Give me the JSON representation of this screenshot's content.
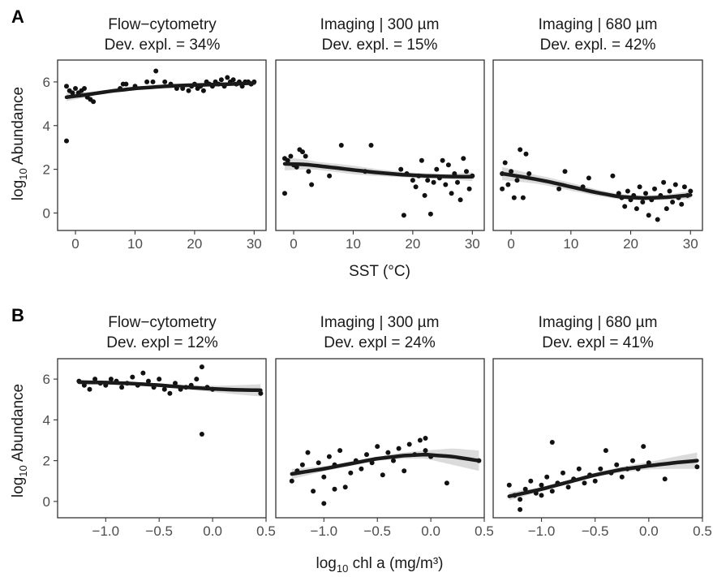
{
  "rows": [
    {
      "tag": "A",
      "xlabel_main": "SST (°C)",
      "xlabel_sub": "",
      "xlabel_tail": "",
      "ylabel_main": "log",
      "ylabel_sub": "10",
      "ylabel_tail": " Abundance",
      "xlim": [
        -3,
        32
      ],
      "ylim": [
        -0.8,
        7.0
      ],
      "xticks": [
        0,
        10,
        20,
        30
      ],
      "xtick_labels": [
        "0",
        "10",
        "20",
        "30"
      ],
      "yticks": [
        0,
        2,
        4,
        6
      ],
      "ytick_labels": [
        "0",
        "2",
        "4",
        "6"
      ]
    },
    {
      "tag": "B",
      "xlabel_main": "log",
      "xlabel_sub": "10",
      "xlabel_tail": " chl a (mg/m³)",
      "ylabel_main": "log",
      "ylabel_sub": "10",
      "ylabel_tail": " Abundance",
      "xlim": [
        -1.45,
        0.5
      ],
      "ylim": [
        -0.8,
        7.0
      ],
      "xticks": [
        -1.0,
        -0.5,
        0.0,
        0.5
      ],
      "xtick_labels": [
        "−1.0",
        "−0.5",
        "0.0",
        "0.5"
      ],
      "yticks": [
        0,
        2,
        4,
        6
      ],
      "ytick_labels": [
        "0",
        "2",
        "4",
        "6"
      ]
    }
  ],
  "chart_data": [
    {
      "type": "scatter",
      "panel": "A1",
      "title": [
        "Flow−cytometry",
        "Dev. expl. = 34%"
      ],
      "xlabel": "SST (°C)",
      "ylabel": "log10 Abundance",
      "xlim": [
        -3,
        32
      ],
      "ylim": [
        -0.8,
        7.0
      ],
      "points": [
        [
          -1.5,
          5.8
        ],
        [
          -1,
          5.6
        ],
        [
          -0.5,
          5.5
        ],
        [
          0,
          5.7
        ],
        [
          0.5,
          5.5
        ],
        [
          1,
          5.6
        ],
        [
          1.5,
          5.7
        ],
        [
          2,
          5.3
        ],
        [
          2.5,
          5.2
        ],
        [
          3,
          5.1
        ],
        [
          -1.5,
          3.3
        ],
        [
          7.5,
          5.7
        ],
        [
          8,
          5.9
        ],
        [
          8.5,
          5.9
        ],
        [
          10,
          5.8
        ],
        [
          12,
          6.0
        ],
        [
          13,
          6.0
        ],
        [
          13.5,
          6.5
        ],
        [
          15,
          6.0
        ],
        [
          16,
          5.9
        ],
        [
          17,
          5.7
        ],
        [
          18,
          5.7
        ],
        [
          19,
          5.6
        ],
        [
          19.5,
          5.8
        ],
        [
          20,
          5.9
        ],
        [
          20.5,
          5.7
        ],
        [
          21,
          5.8
        ],
        [
          21.5,
          5.6
        ],
        [
          22,
          6.0
        ],
        [
          22.5,
          5.9
        ],
        [
          23,
          5.8
        ],
        [
          23.5,
          6.0
        ],
        [
          24,
          5.9
        ],
        [
          24.5,
          6.1
        ],
        [
          25,
          5.8
        ],
        [
          25.5,
          6.2
        ],
        [
          26,
          6.0
        ],
        [
          26.5,
          6.1
        ],
        [
          27,
          5.9
        ],
        [
          27.5,
          6.0
        ],
        [
          28,
          5.8
        ],
        [
          28.5,
          6.0
        ],
        [
          29,
          6.0
        ],
        [
          29.5,
          5.9
        ],
        [
          30,
          6.0
        ]
      ],
      "fit": [
        [
          -1.5,
          5.3
        ],
        [
          2,
          5.42
        ],
        [
          6,
          5.58
        ],
        [
          10,
          5.7
        ],
        [
          14,
          5.78
        ],
        [
          18,
          5.84
        ],
        [
          22,
          5.87
        ],
        [
          26,
          5.9
        ],
        [
          30,
          5.95
        ]
      ],
      "band": [
        [
          -1.5,
          0.18
        ],
        [
          4,
          0.08
        ],
        [
          10,
          0.06
        ],
        [
          18,
          0.05
        ],
        [
          26,
          0.06
        ],
        [
          30,
          0.1
        ]
      ],
      "grid": false
    },
    {
      "type": "scatter",
      "panel": "A2",
      "title": [
        "Imaging | 300 µm",
        "Dev. expl. = 15%"
      ],
      "xlabel": "SST (°C)",
      "ylabel": "log10 Abundance",
      "xlim": [
        -3,
        32
      ],
      "ylim": [
        -0.8,
        7.0
      ],
      "points": [
        [
          -1.5,
          2.5
        ],
        [
          -1,
          2.4
        ],
        [
          -0.5,
          2.6
        ],
        [
          0,
          2.2
        ],
        [
          0.5,
          2.1
        ],
        [
          1,
          2.9
        ],
        [
          1.5,
          2.8
        ],
        [
          2,
          2.6
        ],
        [
          2.5,
          1.9
        ],
        [
          3,
          1.3
        ],
        [
          -1.5,
          0.9
        ],
        [
          8,
          3.1
        ],
        [
          12,
          1.9
        ],
        [
          13,
          3.1
        ],
        [
          6,
          1.7
        ],
        [
          18,
          2.0
        ],
        [
          18.5,
          -0.1
        ],
        [
          19,
          1.8
        ],
        [
          20,
          1.5
        ],
        [
          20.5,
          1.2
        ],
        [
          21,
          1.7
        ],
        [
          21.5,
          2.4
        ],
        [
          22,
          0.8
        ],
        [
          22.5,
          1.5
        ],
        [
          23,
          -0.05
        ],
        [
          23.5,
          1.4
        ],
        [
          24,
          2.0
        ],
        [
          24.5,
          1.6
        ],
        [
          25,
          2.4
        ],
        [
          25.5,
          1.3
        ],
        [
          26,
          2.2
        ],
        [
          26.5,
          0.9
        ],
        [
          27,
          1.8
        ],
        [
          27.5,
          1.4
        ],
        [
          28,
          0.6
        ],
        [
          28.5,
          2.5
        ],
        [
          29,
          1.9
        ],
        [
          29.5,
          1.1
        ],
        [
          30,
          1.7
        ]
      ],
      "fit": [
        [
          -1.5,
          2.25
        ],
        [
          2,
          2.22
        ],
        [
          6,
          2.1
        ],
        [
          10,
          1.97
        ],
        [
          14,
          1.85
        ],
        [
          18,
          1.76
        ],
        [
          22,
          1.7
        ],
        [
          26,
          1.67
        ],
        [
          30,
          1.66
        ]
      ],
      "band": [
        [
          -1.5,
          0.3
        ],
        [
          4,
          0.18
        ],
        [
          10,
          0.2
        ],
        [
          18,
          0.12
        ],
        [
          26,
          0.12
        ],
        [
          30,
          0.2
        ]
      ],
      "grid": false
    },
    {
      "type": "scatter",
      "panel": "A3",
      "title": [
        "Imaging | 680 µm",
        "Dev. expl. = 42%"
      ],
      "xlabel": "SST (°C)",
      "ylabel": "log10 Abundance",
      "xlim": [
        -3,
        32
      ],
      "ylim": [
        -0.8,
        7.0
      ],
      "points": [
        [
          -1.5,
          1.8
        ],
        [
          -1,
          2.3
        ],
        [
          -0.5,
          1.3
        ],
        [
          0,
          1.9
        ],
        [
          0.5,
          0.7
        ],
        [
          1,
          1.5
        ],
        [
          1.5,
          2.9
        ],
        [
          2,
          0.7
        ],
        [
          2.5,
          2.7
        ],
        [
          3,
          1.8
        ],
        [
          -1.5,
          1.1
        ],
        [
          8,
          1.1
        ],
        [
          9,
          1.9
        ],
        [
          12,
          1.2
        ],
        [
          13,
          1.6
        ],
        [
          17,
          1.7
        ],
        [
          18,
          0.9
        ],
        [
          18.5,
          0.7
        ],
        [
          19,
          0.3
        ],
        [
          19.5,
          1.0
        ],
        [
          20,
          0.6
        ],
        [
          20.5,
          0.8
        ],
        [
          21,
          0.2
        ],
        [
          21.5,
          1.2
        ],
        [
          22,
          0.5
        ],
        [
          22.5,
          0.9
        ],
        [
          23,
          -0.1
        ],
        [
          23.5,
          0.6
        ],
        [
          24,
          1.1
        ],
        [
          24.5,
          -0.3
        ],
        [
          25,
          0.8
        ],
        [
          25.5,
          1.4
        ],
        [
          26,
          0.2
        ],
        [
          26.5,
          1.0
        ],
        [
          27,
          0.5
        ],
        [
          27.5,
          1.3
        ],
        [
          28,
          0.7
        ],
        [
          28.5,
          0.4
        ],
        [
          29,
          1.2
        ],
        [
          29.5,
          0.8
        ],
        [
          30,
          1.0
        ]
      ],
      "fit": [
        [
          -1.5,
          1.8
        ],
        [
          2,
          1.65
        ],
        [
          6,
          1.45
        ],
        [
          10,
          1.2
        ],
        [
          14,
          0.95
        ],
        [
          18,
          0.75
        ],
        [
          22,
          0.68
        ],
        [
          26,
          0.72
        ],
        [
          30,
          0.82
        ]
      ],
      "band": [
        [
          -1.5,
          0.3
        ],
        [
          4,
          0.2
        ],
        [
          10,
          0.18
        ],
        [
          18,
          0.12
        ],
        [
          26,
          0.12
        ],
        [
          30,
          0.18
        ]
      ],
      "grid": false
    },
    {
      "type": "scatter",
      "panel": "B1",
      "title": [
        "Flow−cytometry",
        "Dev. expl = 12%"
      ],
      "xlabel": "log10 chl a (mg/m3)",
      "ylabel": "log10 Abundance",
      "xlim": [
        -1.45,
        0.5
      ],
      "ylim": [
        -0.8,
        7.0
      ],
      "points": [
        [
          -1.25,
          5.9
        ],
        [
          -1.2,
          5.7
        ],
        [
          -1.15,
          5.5
        ],
        [
          -1.1,
          6.0
        ],
        [
          -1.05,
          5.8
        ],
        [
          -1.0,
          5.7
        ],
        [
          -0.95,
          6.0
        ],
        [
          -0.9,
          5.9
        ],
        [
          -0.85,
          5.6
        ],
        [
          -0.8,
          5.8
        ],
        [
          -0.75,
          6.1
        ],
        [
          -0.7,
          5.7
        ],
        [
          -0.65,
          6.3
        ],
        [
          -0.6,
          5.9
        ],
        [
          -0.55,
          5.6
        ],
        [
          -0.5,
          6.0
        ],
        [
          -0.45,
          5.5
        ],
        [
          -0.4,
          5.3
        ],
        [
          -0.35,
          5.8
        ],
        [
          -0.3,
          5.5
        ],
        [
          -0.25,
          5.6
        ],
        [
          -0.2,
          5.7
        ],
        [
          -0.15,
          6.0
        ],
        [
          -0.1,
          6.6
        ],
        [
          -0.05,
          5.6
        ],
        [
          0.0,
          5.5
        ],
        [
          -0.1,
          3.3
        ],
        [
          0.45,
          5.3
        ]
      ],
      "fit": [
        [
          -1.25,
          5.85
        ],
        [
          -1.0,
          5.83
        ],
        [
          -0.75,
          5.78
        ],
        [
          -0.5,
          5.7
        ],
        [
          -0.25,
          5.6
        ],
        [
          0.0,
          5.52
        ],
        [
          0.25,
          5.47
        ],
        [
          0.45,
          5.45
        ]
      ],
      "band": [
        [
          -1.25,
          0.12
        ],
        [
          -0.75,
          0.06
        ],
        [
          -0.25,
          0.1
        ],
        [
          0.0,
          0.15
        ],
        [
          0.45,
          0.3
        ]
      ],
      "grid": false
    },
    {
      "type": "scatter",
      "panel": "B2",
      "title": [
        "Imaging | 300 µm",
        "Dev. expl = 24%"
      ],
      "xlabel": "log10 chl a (mg/m3)",
      "ylabel": "log10 Abundance",
      "xlim": [
        -1.45,
        0.5
      ],
      "ylim": [
        -0.8,
        7.0
      ],
      "points": [
        [
          -1.3,
          1.0
        ],
        [
          -1.25,
          1.5
        ],
        [
          -1.2,
          1.8
        ],
        [
          -1.15,
          2.4
        ],
        [
          -1.1,
          0.5
        ],
        [
          -1.05,
          1.9
        ],
        [
          -1.0,
          1.2
        ],
        [
          -0.95,
          2.2
        ],
        [
          -0.9,
          1.8
        ],
        [
          -0.85,
          2.5
        ],
        [
          -0.8,
          0.7
        ],
        [
          -0.75,
          1.4
        ],
        [
          -0.7,
          2.0
        ],
        [
          -0.65,
          1.6
        ],
        [
          -0.6,
          2.3
        ],
        [
          -0.55,
          1.9
        ],
        [
          -0.5,
          2.7
        ],
        [
          -0.45,
          1.3
        ],
        [
          -0.4,
          2.4
        ],
        [
          -0.35,
          2.0
        ],
        [
          -0.3,
          2.6
        ],
        [
          -0.25,
          1.5
        ],
        [
          -0.2,
          2.8
        ],
        [
          -0.15,
          2.3
        ],
        [
          -0.1,
          3.0
        ],
        [
          -0.05,
          2.5
        ],
        [
          -0.05,
          3.1
        ],
        [
          0.0,
          2.2
        ],
        [
          0.15,
          0.9
        ],
        [
          0.45,
          2.0
        ],
        [
          -1.0,
          -0.1
        ],
        [
          -0.9,
          0.6
        ]
      ],
      "fit": [
        [
          -1.3,
          1.35
        ],
        [
          -1.0,
          1.6
        ],
        [
          -0.75,
          1.85
        ],
        [
          -0.5,
          2.1
        ],
        [
          -0.25,
          2.25
        ],
        [
          -0.05,
          2.3
        ],
        [
          0.2,
          2.2
        ],
        [
          0.45,
          2.0
        ]
      ],
      "band": [
        [
          -1.3,
          0.25
        ],
        [
          -1.0,
          0.12
        ],
        [
          -0.5,
          0.1
        ],
        [
          -0.05,
          0.2
        ],
        [
          0.2,
          0.4
        ],
        [
          0.45,
          0.5
        ]
      ],
      "grid": false
    },
    {
      "type": "scatter",
      "panel": "B3",
      "title": [
        "Imaging | 680 µm",
        "Dev. expl = 41%"
      ],
      "xlabel": "log10 chl a (mg/m3)",
      "ylabel": "log10 Abundance",
      "xlim": [
        -1.45,
        0.5
      ],
      "ylim": [
        -0.8,
        7.0
      ],
      "points": [
        [
          -1.3,
          0.8
        ],
        [
          -1.25,
          0.3
        ],
        [
          -1.2,
          0.1
        ],
        [
          -1.15,
          0.6
        ],
        [
          -1.1,
          1.0
        ],
        [
          -1.05,
          0.4
        ],
        [
          -1.0,
          0.8
        ],
        [
          -0.95,
          1.2
        ],
        [
          -0.9,
          2.9
        ],
        [
          -0.9,
          0.5
        ],
        [
          -0.85,
          0.9
        ],
        [
          -0.8,
          1.4
        ],
        [
          -0.75,
          0.7
        ],
        [
          -0.7,
          1.1
        ],
        [
          -0.65,
          1.6
        ],
        [
          -0.6,
          0.9
        ],
        [
          -0.55,
          1.3
        ],
        [
          -0.5,
          1.0
        ],
        [
          -0.45,
          1.6
        ],
        [
          -0.4,
          2.5
        ],
        [
          -0.35,
          1.4
        ],
        [
          -0.3,
          1.8
        ],
        [
          -0.25,
          1.2
        ],
        [
          -0.2,
          1.6
        ],
        [
          -0.15,
          2.0
        ],
        [
          -0.1,
          1.6
        ],
        [
          -0.05,
          2.7
        ],
        [
          0.0,
          1.9
        ],
        [
          0.15,
          1.1
        ],
        [
          0.45,
          1.7
        ],
        [
          -1.2,
          -0.4
        ],
        [
          -1.0,
          0.3
        ]
      ],
      "fit": [
        [
          -1.3,
          0.25
        ],
        [
          -1.0,
          0.6
        ],
        [
          -0.75,
          0.95
        ],
        [
          -0.5,
          1.3
        ],
        [
          -0.25,
          1.57
        ],
        [
          0.0,
          1.75
        ],
        [
          0.25,
          1.9
        ],
        [
          0.45,
          2.0
        ]
      ],
      "band": [
        [
          -1.3,
          0.2
        ],
        [
          -1.0,
          0.1
        ],
        [
          -0.5,
          0.1
        ],
        [
          0.0,
          0.18
        ],
        [
          0.25,
          0.3
        ],
        [
          0.45,
          0.4
        ]
      ],
      "grid": false
    }
  ]
}
